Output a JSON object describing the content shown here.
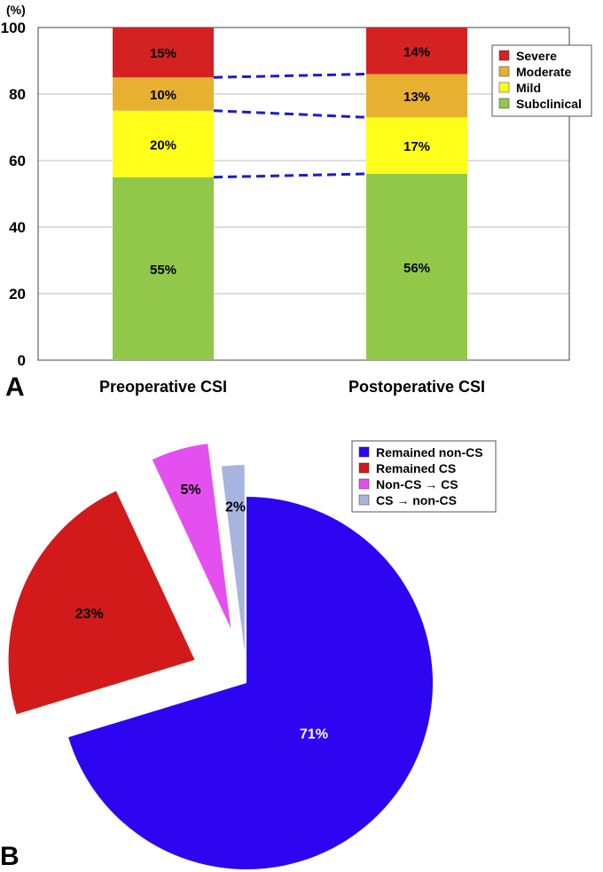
{
  "panel_a_label": "A",
  "panel_b_label": "B",
  "chart_data": [
    {
      "type": "bar",
      "stacked": true,
      "unit_label": "(%)",
      "categories": [
        "Preoperative CSI",
        "Postoperative CSI"
      ],
      "ylim": [
        0,
        100
      ],
      "yticks": [
        0,
        20,
        40,
        60,
        80,
        100
      ],
      "grid": true,
      "legend_position": "top-right",
      "series": [
        {
          "name": "Subclinical",
          "values": [
            55,
            56
          ],
          "labels": [
            "55%",
            "56%"
          ],
          "color": "#92C84A"
        },
        {
          "name": "Mild",
          "values": [
            20,
            17
          ],
          "labels": [
            "20%",
            "17%"
          ],
          "color": "#FFFF1A"
        },
        {
          "name": "Moderate",
          "values": [
            10,
            13
          ],
          "labels": [
            "10%",
            "13%"
          ],
          "color": "#E8B030"
        },
        {
          "name": "Severe",
          "values": [
            15,
            14
          ],
          "labels": [
            "15%",
            "14%"
          ],
          "color": "#D42222"
        }
      ],
      "connector_color": "#1A1AD6"
    },
    {
      "type": "pie",
      "legend_position": "top-right",
      "slices": [
        {
          "name": "Remained non-CS",
          "value": 71,
          "label": "71%",
          "color": "#2D05F0",
          "label_color": "#ffffff",
          "exploded": false
        },
        {
          "name": "Remained CS",
          "value": 23,
          "label": "23%",
          "color": "#D21A1A",
          "label_color": "#000000",
          "exploded": true
        },
        {
          "name": "Non-CS → CS",
          "value": 5,
          "label": "5%",
          "color": "#E450F0",
          "label_color": "#000000",
          "exploded": true
        },
        {
          "name": "CS → non-CS",
          "value": 2,
          "label": "2%",
          "color": "#A8B4E0",
          "label_color": "#000000",
          "exploded": true
        }
      ]
    }
  ]
}
